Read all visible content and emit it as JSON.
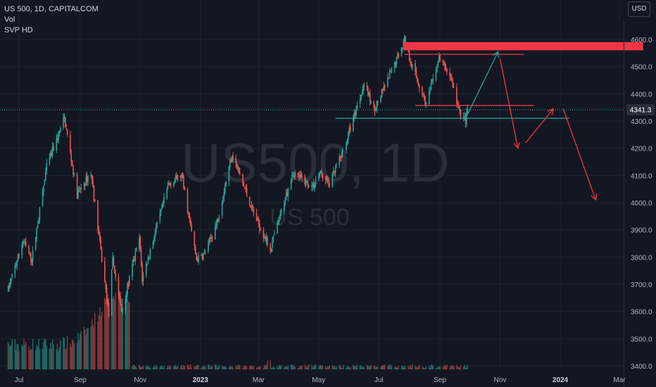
{
  "legend": {
    "symbol_line": "US 500, 1D, CAPITALCOM",
    "vol_label": "Vol",
    "svp_label": "SVP HD"
  },
  "currency_button": "USD",
  "watermark": {
    "main": "US500, 1D",
    "sub": "US 500"
  },
  "colors": {
    "background": "#131722",
    "up": "#26a69a",
    "down": "#ef5350",
    "up_volume": "#1f6f69",
    "down_volume": "#8a3a3c",
    "resistance_zone": "#f23645",
    "drawing_green": "#26a69a",
    "drawing_red": "#f23645",
    "price_tag": "#2a2e39"
  },
  "chart_data": {
    "type": "candlestick",
    "symbol": "US 500",
    "timeframe": "1D",
    "source": "CAPITALCOM",
    "current_price": "4341.3",
    "current_price_value": 4341.3,
    "y_axis": {
      "ylim": [
        3380,
        4650
      ],
      "ticks": [
        4600,
        4500,
        4400,
        4300,
        4200,
        4100,
        4000,
        3900,
        3800,
        3700,
        3600,
        3500,
        3400
      ],
      "tick_labels": [
        "4600.0",
        "4500.0",
        "4400.0",
        "4300.0",
        "4200.0",
        "4100.0",
        "4000.0",
        "3900.0",
        "3800.0",
        "3700.0",
        "3600.0",
        "3500.0",
        "3400.0"
      ]
    },
    "x_axis": {
      "labels": [
        "Jul",
        "Sep",
        "Nov",
        "2023",
        "Mar",
        "May",
        "Jul",
        "Sep",
        "Nov",
        "2024",
        "Mar"
      ],
      "bold_labels": [
        "2023",
        "2024"
      ],
      "label_dates": [
        "2022-07-01",
        "2022-09-01",
        "2022-11-01",
        "2023-01-01",
        "2023-03-01",
        "2023-05-01",
        "2023-07-01",
        "2023-09-01",
        "2023-11-01",
        "2024-01-01",
        "2024-03-01"
      ]
    },
    "price_path": [
      [
        "2022-06-20",
        3680
      ],
      [
        "2022-07-05",
        3860
      ],
      [
        "2022-07-14",
        3790
      ],
      [
        "2022-07-29",
        4130
      ],
      [
        "2022-08-16",
        4310
      ],
      [
        "2022-08-29",
        4030
      ],
      [
        "2022-09-12",
        4110
      ],
      [
        "2022-09-30",
        3590
      ],
      [
        "2022-10-04",
        3790
      ],
      [
        "2022-10-13",
        3600
      ],
      [
        "2022-10-31",
        3870
      ],
      [
        "2022-11-03",
        3720
      ],
      [
        "2022-11-30",
        4070
      ],
      [
        "2022-12-13",
        4100
      ],
      [
        "2022-12-28",
        3790
      ],
      [
        "2023-01-05",
        3810
      ],
      [
        "2023-01-18",
        3930
      ],
      [
        "2023-02-02",
        4180
      ],
      [
        "2023-02-24",
        3960
      ],
      [
        "2023-03-13",
        3830
      ],
      [
        "2023-03-23",
        3950
      ],
      [
        "2023-04-04",
        4110
      ],
      [
        "2023-04-25",
        4060
      ],
      [
        "2023-05-02",
        4110
      ],
      [
        "2023-05-12",
        4070
      ],
      [
        "2023-05-26",
        4190
      ],
      [
        "2023-06-16",
        4440
      ],
      [
        "2023-06-26",
        4340
      ],
      [
        "2023-07-10",
        4450
      ],
      [
        "2023-07-27",
        4600
      ],
      [
        "2023-08-03",
        4510
      ],
      [
        "2023-08-18",
        4360
      ],
      [
        "2023-08-31",
        4530
      ],
      [
        "2023-09-12",
        4460
      ],
      [
        "2023-09-21",
        4330
      ],
      [
        "2023-09-27",
        4300
      ],
      [
        "2023-09-29",
        4341
      ]
    ],
    "volume_profile": "low until mid Oct 2022, peaking around Oct-Nov 2022, then low",
    "drawings": {
      "resistance_zone": {
        "from": "2023-07-26",
        "to": "2024-03-25",
        "top": 4590,
        "bottom": 4560,
        "color": "red"
      },
      "level_lines": [
        {
          "price": 4545,
          "from": "2023-07-27",
          "to": "2023-11-25",
          "color": "red"
        },
        {
          "price": 4357,
          "from": "2023-08-07",
          "to": "2023-12-05",
          "color": "red"
        },
        {
          "price": 4310,
          "from": "2023-05-18",
          "to": "2024-01-10",
          "color": "green"
        }
      ],
      "projections": [
        {
          "points": [
            [
              "2023-09-27",
              4310
            ],
            [
              "2023-10-30",
              4555
            ]
          ],
          "arrow": true,
          "color": "green"
        },
        {
          "points": [
            [
              "2023-11-01",
              4530
            ],
            [
              "2023-11-19",
              4200
            ]
          ],
          "arrow": true,
          "color": "red"
        },
        {
          "points": [
            [
              "2023-11-27",
              4220
            ],
            [
              "2023-12-25",
              4345
            ]
          ],
          "arrow": true,
          "color": "red"
        },
        {
          "points": [
            [
              "2024-01-04",
              4345
            ],
            [
              "2024-02-06",
              4010
            ]
          ],
          "arrow": true,
          "color": "red"
        }
      ]
    }
  }
}
